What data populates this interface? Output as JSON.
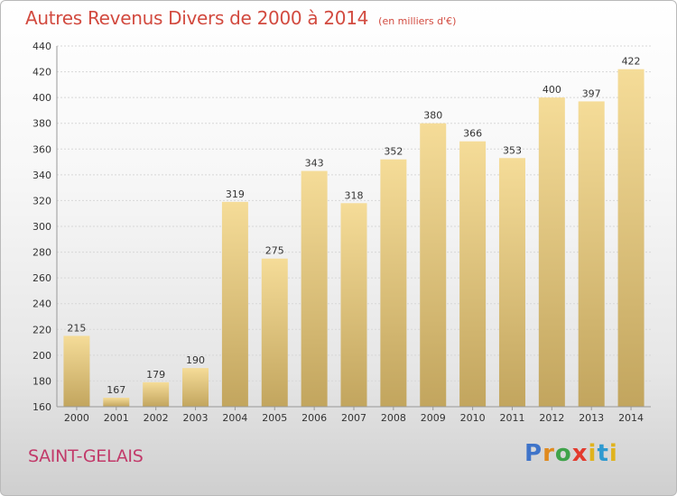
{
  "title": "Autres Revenus Divers de 2000 à 2014",
  "subtitle": "(en milliers d'€)",
  "commune": "SAINT-GELAIS",
  "logo": {
    "letters": [
      "P",
      "r",
      "o",
      "x",
      "i",
      "t",
      "i"
    ]
  },
  "colors": {
    "title": "#d24a3f",
    "commune": "#c23a6a",
    "bar_top": "#f5dc98",
    "bar_bottom": "#c2a55e"
  },
  "chart_data": {
    "type": "bar",
    "categories": [
      "2000",
      "2001",
      "2002",
      "2003",
      "2004",
      "2005",
      "2006",
      "2007",
      "2008",
      "2009",
      "2010",
      "2011",
      "2012",
      "2013",
      "2014"
    ],
    "values": [
      215,
      167,
      179,
      190,
      319,
      275,
      343,
      318,
      352,
      380,
      366,
      353,
      400,
      397,
      422
    ],
    "ylim": [
      160,
      440
    ],
    "yticks": [
      160,
      180,
      200,
      220,
      240,
      260,
      280,
      300,
      320,
      340,
      360,
      380,
      400,
      420,
      440
    ],
    "grid": true,
    "xlabel": "",
    "ylabel": ""
  }
}
